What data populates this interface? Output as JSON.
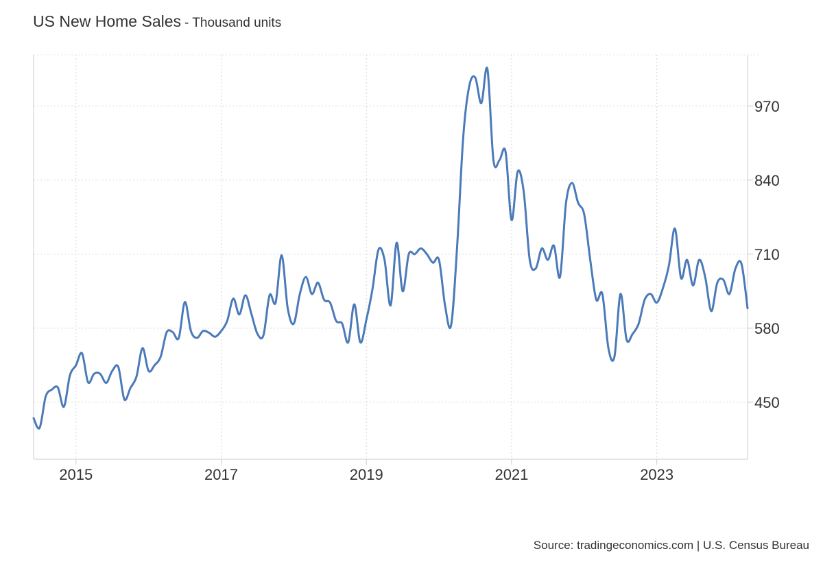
{
  "header": {
    "title": "US New Home Sales",
    "subtitle": "- Thousand units"
  },
  "source": "Source: tradingeconomics.com | U.S. Census Bureau",
  "chart_data": {
    "type": "line",
    "title": "US New Home Sales",
    "subtitle": "Thousand units",
    "xlabel": "",
    "ylabel": "",
    "xlim": [
      "2014-06",
      "2024-04"
    ],
    "ylim": [
      350,
      1060
    ],
    "x_ticks": [
      "2015",
      "2017",
      "2019",
      "2021",
      "2023"
    ],
    "y_ticks": [
      450,
      580,
      710,
      840,
      970
    ],
    "y_axis_position": "right",
    "grid": true,
    "legend": "none",
    "line_color": "#4a7ab8",
    "series": [
      {
        "x": [
          "2014-06",
          "2014-07",
          "2014-08",
          "2014-09",
          "2014-10",
          "2014-11",
          "2014-12",
          "2015-01",
          "2015-02",
          "2015-03",
          "2015-04",
          "2015-05",
          "2015-06",
          "2015-07",
          "2015-08",
          "2015-09",
          "2015-10",
          "2015-11",
          "2015-12",
          "2016-01",
          "2016-02",
          "2016-03",
          "2016-04",
          "2016-05",
          "2016-06",
          "2016-07",
          "2016-08",
          "2016-09",
          "2016-10",
          "2016-11",
          "2016-12",
          "2017-01",
          "2017-02",
          "2017-03",
          "2017-04",
          "2017-05",
          "2017-06",
          "2017-07",
          "2017-08",
          "2017-09",
          "2017-10",
          "2017-11",
          "2017-12",
          "2018-01",
          "2018-02",
          "2018-03",
          "2018-04",
          "2018-05",
          "2018-06",
          "2018-07",
          "2018-08",
          "2018-09",
          "2018-10",
          "2018-11",
          "2018-12",
          "2019-01",
          "2019-02",
          "2019-03",
          "2019-04",
          "2019-05",
          "2019-06",
          "2019-07",
          "2019-08",
          "2019-09",
          "2019-10",
          "2019-11",
          "2019-12",
          "2020-01",
          "2020-02",
          "2020-03",
          "2020-04",
          "2020-05",
          "2020-06",
          "2020-07",
          "2020-08",
          "2020-09",
          "2020-10",
          "2020-11",
          "2020-12",
          "2021-01",
          "2021-02",
          "2021-03",
          "2021-04",
          "2021-05",
          "2021-06",
          "2021-07",
          "2021-08",
          "2021-09",
          "2021-10",
          "2021-11",
          "2021-12",
          "2022-01",
          "2022-02",
          "2022-03",
          "2022-04",
          "2022-05",
          "2022-06",
          "2022-07",
          "2022-08",
          "2022-09",
          "2022-10",
          "2022-11",
          "2022-12",
          "2023-01",
          "2023-02",
          "2023-03",
          "2023-04",
          "2023-05",
          "2023-06",
          "2023-07",
          "2023-08",
          "2023-09",
          "2023-10",
          "2023-11",
          "2023-12",
          "2024-01",
          "2024-02",
          "2024-03",
          "2024-04"
        ],
        "values": [
          422,
          405,
          460,
          472,
          476,
          442,
          497,
          515,
          536,
          485,
          500,
          500,
          484,
          505,
          512,
          455,
          475,
          495,
          545,
          505,
          515,
          530,
          573,
          573,
          563,
          626,
          575,
          563,
          575,
          572,
          565,
          575,
          593,
          632,
          604,
          638,
          605,
          570,
          568,
          638,
          625,
          708,
          615,
          588,
          640,
          670,
          640,
          660,
          630,
          625,
          593,
          588,
          555,
          622,
          555,
          595,
          648,
          718,
          700,
          620,
          730,
          645,
          710,
          710,
          720,
          710,
          695,
          700,
          620,
          585,
          723,
          915,
          1005,
          1020,
          975,
          1035,
          875,
          875,
          890,
          770,
          855,
          820,
          700,
          685,
          720,
          700,
          725,
          670,
          800,
          835,
          800,
          780,
          700,
          630,
          640,
          545,
          530,
          640,
          560,
          570,
          588,
          630,
          640,
          625,
          650,
          690,
          755,
          668,
          700,
          655,
          700,
          670,
          610,
          660,
          665,
          640,
          685,
          693,
          615
        ]
      }
    ]
  }
}
